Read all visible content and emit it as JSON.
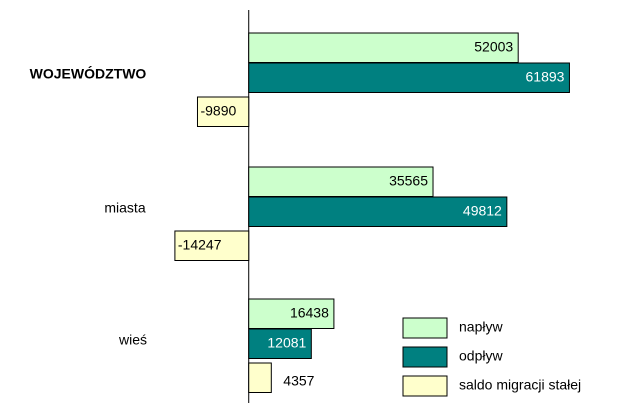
{
  "chart_data": {
    "type": "hbar",
    "categories": [
      "WOJEWÓDZTWO",
      "miasta",
      "wieś"
    ],
    "series": [
      {
        "name": "napływ",
        "color": "#ccffcc",
        "values": [
          52003,
          35565,
          16438
        ]
      },
      {
        "name": "odpływ",
        "color": "#008080",
        "values": [
          61893,
          49812,
          12081
        ]
      },
      {
        "name": "saldo migracji stałej",
        "color": "#ffffcc",
        "values": [
          -9890,
          -14247,
          4357
        ]
      }
    ],
    "xlim": [
      -48000,
      73000
    ],
    "legend": "lower right"
  }
}
